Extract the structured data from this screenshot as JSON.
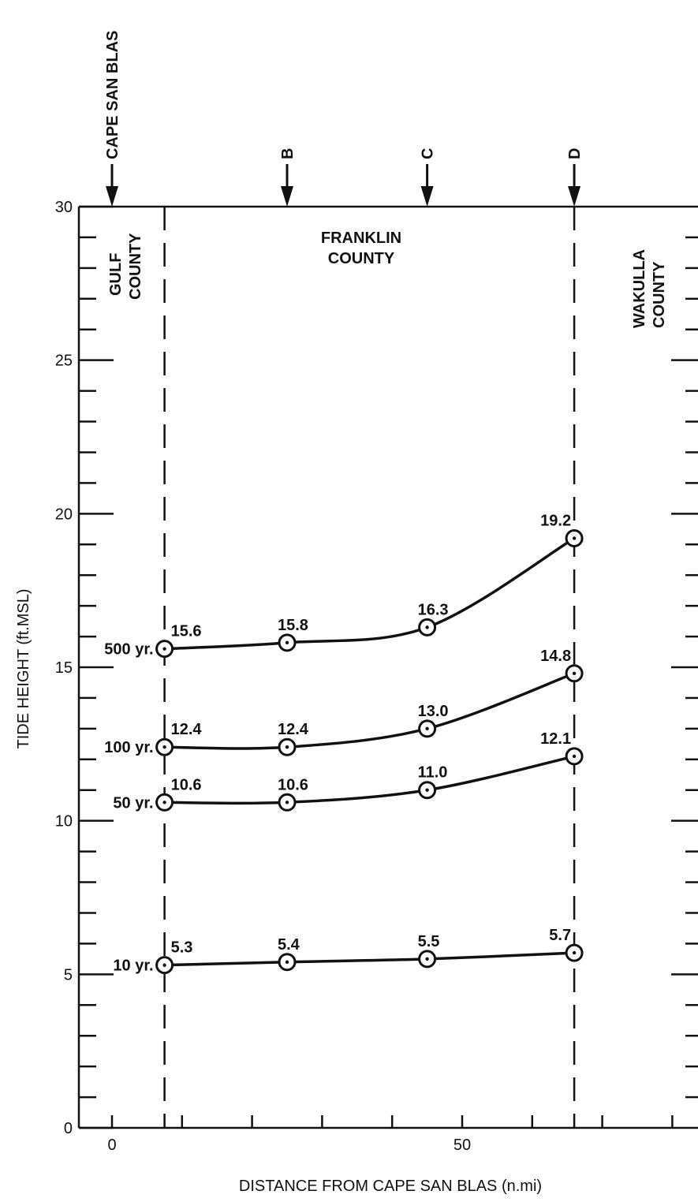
{
  "chart_data": {
    "type": "line",
    "xlabel": "DISTANCE FROM CAPE SAN BLAS (n.mi)",
    "ylabel": "TIDE HEIGHT (ft.MSL)",
    "xlim": [
      -7,
      83
    ],
    "ylim": [
      0,
      30
    ],
    "x_ticks": [
      0,
      50
    ],
    "y_ticks": [
      0,
      5,
      10,
      15,
      20,
      25,
      30
    ],
    "grid": false,
    "x": [
      7.5,
      25,
      45,
      66
    ],
    "series": [
      {
        "name": "500 yr.",
        "values": [
          15.6,
          15.8,
          16.3,
          19.2
        ],
        "labels": [
          "15.6",
          "15.8",
          "16.3",
          "19.2"
        ]
      },
      {
        "name": "100 yr.",
        "values": [
          12.4,
          12.4,
          13.0,
          14.8
        ],
        "labels": [
          "12.4",
          "12.4",
          "13.0",
          "14.8"
        ]
      },
      {
        "name": "50 yr.",
        "values": [
          10.6,
          10.6,
          11.0,
          12.1
        ],
        "labels": [
          "10.6",
          "10.6",
          "11.0",
          "12.1"
        ]
      },
      {
        "name": "10 yr.",
        "values": [
          5.3,
          5.4,
          5.5,
          5.7
        ],
        "labels": [
          "5.3",
          "5.4",
          "5.5",
          "5.7"
        ]
      }
    ],
    "markers": [
      {
        "label": "CAPE SAN BLAS",
        "x": 0
      },
      {
        "label": "B",
        "x": 25
      },
      {
        "label": "C",
        "x": 45
      },
      {
        "label": "D",
        "x": 66
      }
    ],
    "county_boundaries": [
      7.5,
      66
    ],
    "counties": [
      {
        "name": "GULF COUNTY",
        "lines": [
          "GULF",
          "COUNTY"
        ],
        "orientation": "vertical"
      },
      {
        "name": "FRANKLIN COUNTY",
        "lines": [
          "FRANKLIN",
          "COUNTY"
        ],
        "orientation": "horizontal"
      },
      {
        "name": "WAKULLA COUNTY",
        "lines": [
          "WAKULLA",
          "COUNTY"
        ],
        "orientation": "vertical"
      }
    ]
  }
}
